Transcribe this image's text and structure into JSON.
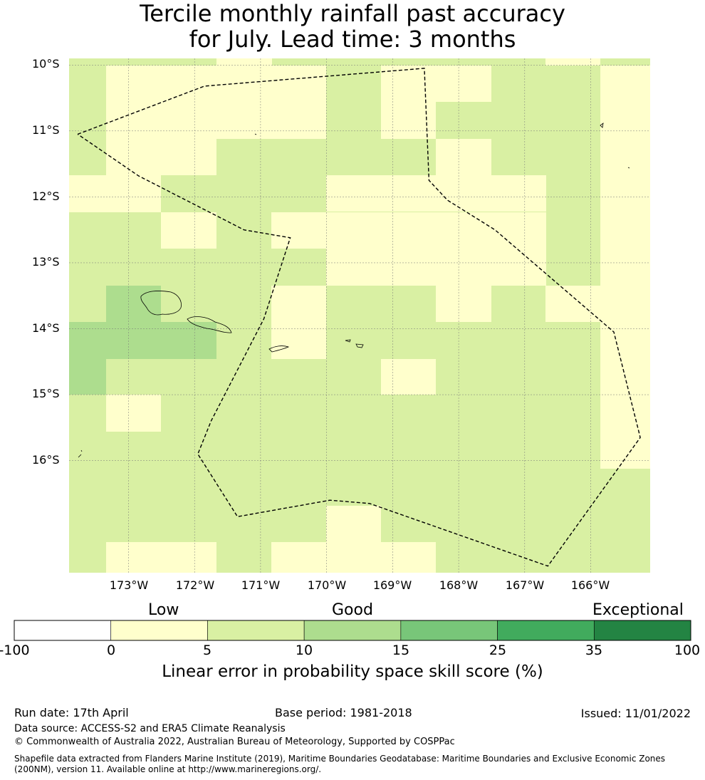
{
  "title": {
    "line1": "Tercile monthly rainfall past accuracy",
    "line2": "for July. Lead time: 3 months"
  },
  "map": {
    "lat_labels": [
      "10°S",
      "11°S",
      "12°S",
      "13°S",
      "14°S",
      "15°S",
      "16°S"
    ],
    "lon_labels": [
      "173°W",
      "172°W",
      "171°W",
      "170°W",
      "169°W",
      "168°W",
      "167°W",
      "166°W"
    ],
    "lon_range": [
      -173.9,
      -165.1
    ],
    "lat_range": [
      -17.7,
      -9.9
    ],
    "colors": {
      "c0_5": "#ffffcc",
      "c5_10": "#d9f0a3",
      "c10_15": "#addd8e"
    },
    "eez_boundary": [
      [
        -173.77,
        -11.05
      ],
      [
        -171.85,
        -10.32
      ],
      [
        -168.52,
        -10.05
      ],
      [
        -168.45,
        -11.75
      ],
      [
        -168.17,
        -12.05
      ],
      [
        -167.45,
        -12.5
      ],
      [
        -165.65,
        -14.05
      ],
      [
        -165.25,
        -15.65
      ],
      [
        -166.65,
        -17.6
      ],
      [
        -169.35,
        -16.65
      ],
      [
        -169.95,
        -16.6
      ],
      [
        -171.35,
        -16.85
      ],
      [
        -171.95,
        -15.9
      ],
      [
        -171.75,
        -15.4
      ],
      [
        -170.95,
        -13.85
      ],
      [
        -170.55,
        -12.62
      ],
      [
        -171.25,
        -12.5
      ],
      [
        -172.85,
        -11.68
      ],
      [
        -173.77,
        -11.05
      ]
    ]
  },
  "colorbar": {
    "categories": [
      "Low",
      "Good",
      "Exceptional"
    ],
    "ticks": [
      "-100",
      "0",
      "5",
      "10",
      "15",
      "25",
      "35",
      "100"
    ],
    "colors": [
      "#ffffff",
      "#ffffcc",
      "#d9f0a3",
      "#addd8e",
      "#78c679",
      "#41ab5d",
      "#238443"
    ],
    "label": "Linear error in probability space skill score (%)"
  },
  "footer": {
    "run_date": "Run date: 17th April",
    "base_period": "Base period: 1981-2018",
    "issued": "Issued: 11/01/2022",
    "data_source": "Data source: ACCESS-S2 and ERA5 Climate Reanalysis",
    "copyright": "© Commonwealth of Australia 2022, Australian Bureau of Meteorology, Supported by COSPPac",
    "shapefile_line1": "Shapefile data extracted from Flanders Marine Institute (2019), Maritime Boundaries Geodatabase: Maritime Boundaries and Exclusive Economic Zones",
    "shapefile_line2": "(200NM), version 11. Available online at http://www.marineregions.org/."
  }
}
